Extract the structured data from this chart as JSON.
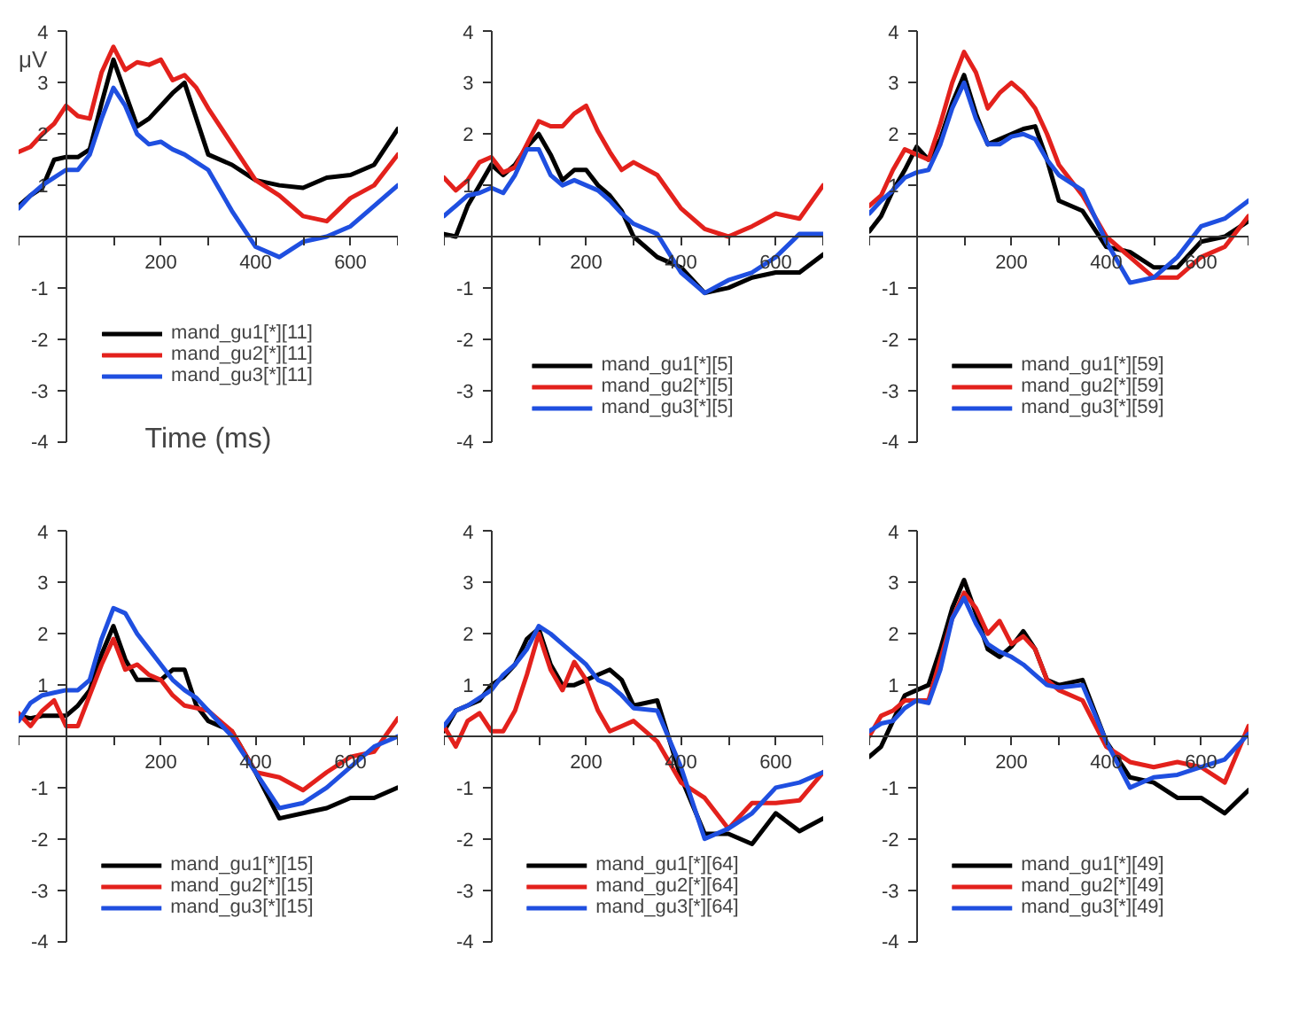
{
  "chart_data": [
    {
      "type": "line",
      "xlabel": "Time (ms)",
      "ylabel": "μV",
      "legend": "bottom",
      "xlim": [
        -100,
        700
      ],
      "ylim": [
        -4,
        4
      ],
      "xticks": [
        {
          "value": -100,
          "label": null
        },
        {
          "value": 0,
          "label": null
        },
        {
          "value": 100,
          "label": null
        },
        200,
        {
          "value": 300,
          "label": null
        },
        400,
        {
          "value": 500,
          "label": null
        },
        600,
        {
          "value": 700,
          "label": null
        }
      ],
      "yticks": [
        -4,
        -3,
        -2,
        -1,
        1,
        2,
        3,
        4
      ],
      "x": [
        -100,
        -75,
        -50,
        -25,
        0,
        25,
        50,
        75,
        100,
        125,
        150,
        175,
        200,
        225,
        250,
        275,
        300,
        350,
        400,
        450,
        500,
        550,
        600,
        650,
        700
      ],
      "series": [
        {
          "name": "mand_gu1[*][11]",
          "color": "#000000",
          "values": [
            0.6,
            0.8,
            0.95,
            1.5,
            1.55,
            1.55,
            1.7,
            2.6,
            3.45,
            2.8,
            2.15,
            2.3,
            2.55,
            2.8,
            3.0,
            2.3,
            1.6,
            1.4,
            1.1,
            1.0,
            0.95,
            1.15,
            1.2,
            1.4,
            2.1
          ]
        },
        {
          "name": "mand_gu2[*][11]",
          "color": "#e3211c",
          "values": [
            1.65,
            1.75,
            2.0,
            2.2,
            2.55,
            2.35,
            2.3,
            3.2,
            3.7,
            3.25,
            3.4,
            3.35,
            3.45,
            3.05,
            3.15,
            2.9,
            2.5,
            1.8,
            1.1,
            0.8,
            0.4,
            0.3,
            0.75,
            1.0,
            1.6
          ]
        },
        {
          "name": "mand_gu3[*][11]",
          "color": "#1f4fe0",
          "values": [
            0.55,
            0.8,
            1.0,
            1.15,
            1.3,
            1.3,
            1.6,
            2.3,
            2.9,
            2.55,
            2.0,
            1.8,
            1.85,
            1.7,
            1.6,
            1.45,
            1.3,
            0.5,
            -0.2,
            -0.4,
            -0.1,
            0.0,
            0.2,
            0.6,
            1.0
          ]
        }
      ]
    },
    {
      "type": "line",
      "legend": "bottom",
      "xlim": [
        -100,
        700
      ],
      "ylim": [
        -4,
        4
      ],
      "xticks": [
        {
          "value": -100,
          "label": null
        },
        {
          "value": 0,
          "label": null
        },
        {
          "value": 100,
          "label": null
        },
        200,
        {
          "value": 300,
          "label": null
        },
        400,
        {
          "value": 500,
          "label": null
        },
        600,
        {
          "value": 700,
          "label": null
        }
      ],
      "yticks": [
        -4,
        -3,
        -2,
        -1,
        1,
        2,
        3,
        4
      ],
      "x": [
        -100,
        -75,
        -50,
        -25,
        0,
        25,
        50,
        75,
        100,
        125,
        150,
        175,
        200,
        225,
        250,
        275,
        300,
        350,
        400,
        450,
        500,
        550,
        600,
        650,
        700
      ],
      "series": [
        {
          "name": "mand_gu1[*][5]",
          "color": "#000000",
          "values": [
            0.05,
            0.0,
            0.6,
            1.0,
            1.4,
            1.2,
            1.4,
            1.75,
            2.0,
            1.6,
            1.1,
            1.3,
            1.3,
            1.0,
            0.8,
            0.5,
            0.0,
            -0.4,
            -0.6,
            -1.1,
            -1.0,
            -0.8,
            -0.7,
            -0.7,
            -0.35
          ]
        },
        {
          "name": "mand_gu2[*][5]",
          "color": "#e3211c",
          "values": [
            1.15,
            0.9,
            1.1,
            1.45,
            1.55,
            1.25,
            1.35,
            1.8,
            2.25,
            2.15,
            2.15,
            2.4,
            2.55,
            2.05,
            1.65,
            1.3,
            1.45,
            1.2,
            0.55,
            0.15,
            0.0,
            0.2,
            0.45,
            0.35,
            1.0
          ]
        },
        {
          "name": "mand_gu3[*][5]",
          "color": "#1f4fe0",
          "values": [
            0.4,
            0.6,
            0.8,
            0.85,
            0.95,
            0.85,
            1.2,
            1.7,
            1.7,
            1.2,
            1.0,
            1.1,
            1.0,
            0.9,
            0.7,
            0.45,
            0.25,
            0.05,
            -0.7,
            -1.1,
            -0.85,
            -0.7,
            -0.4,
            0.05,
            0.05
          ]
        }
      ]
    },
    {
      "type": "line",
      "legend": "bottom",
      "xlim": [
        -100,
        700
      ],
      "ylim": [
        -4,
        4
      ],
      "xticks": [
        {
          "value": -100,
          "label": null
        },
        {
          "value": 0,
          "label": null
        },
        {
          "value": 100,
          "label": null
        },
        200,
        {
          "value": 300,
          "label": null
        },
        400,
        {
          "value": 500,
          "label": null
        },
        600,
        {
          "value": 700,
          "label": null
        }
      ],
      "yticks": [
        -4,
        -3,
        -2,
        -1,
        1,
        2,
        3,
        4
      ],
      "x": [
        -100,
        -75,
        -50,
        -25,
        0,
        25,
        50,
        75,
        100,
        125,
        150,
        175,
        200,
        225,
        250,
        275,
        300,
        350,
        400,
        450,
        500,
        550,
        600,
        650,
        700
      ],
      "series": [
        {
          "name": "mand_gu1[*][59]",
          "color": "#000000",
          "values": [
            0.1,
            0.4,
            0.9,
            1.3,
            1.75,
            1.5,
            1.9,
            2.6,
            3.15,
            2.4,
            1.8,
            1.9,
            2.0,
            2.1,
            2.15,
            1.5,
            0.7,
            0.5,
            -0.2,
            -0.3,
            -0.6,
            -0.6,
            -0.1,
            0.0,
            0.3
          ]
        },
        {
          "name": "mand_gu2[*][59]",
          "color": "#e3211c",
          "values": [
            0.6,
            0.8,
            1.3,
            1.7,
            1.6,
            1.5,
            2.2,
            3.0,
            3.6,
            3.2,
            2.5,
            2.8,
            3.0,
            2.8,
            2.5,
            2.0,
            1.4,
            0.8,
            0.0,
            -0.4,
            -0.8,
            -0.8,
            -0.4,
            -0.2,
            0.4
          ]
        },
        {
          "name": "mand_gu3[*][59]",
          "color": "#1f4fe0",
          "values": [
            0.45,
            0.7,
            0.9,
            1.15,
            1.25,
            1.3,
            1.8,
            2.5,
            3.0,
            2.3,
            1.8,
            1.8,
            1.95,
            2.0,
            1.9,
            1.5,
            1.2,
            0.9,
            -0.1,
            -0.9,
            -0.8,
            -0.4,
            0.2,
            0.35,
            0.7
          ]
        }
      ]
    },
    {
      "type": "line",
      "legend": "bottom",
      "xlim": [
        -100,
        700
      ],
      "ylim": [
        -4,
        4
      ],
      "xticks": [
        {
          "value": -100,
          "label": null
        },
        {
          "value": 0,
          "label": null
        },
        {
          "value": 100,
          "label": null
        },
        200,
        {
          "value": 300,
          "label": null
        },
        400,
        {
          "value": 500,
          "label": null
        },
        600,
        {
          "value": 700,
          "label": null
        }
      ],
      "yticks": [
        -4,
        -3,
        -2,
        -1,
        1,
        2,
        3,
        4
      ],
      "x": [
        -100,
        -75,
        -50,
        -25,
        0,
        25,
        50,
        75,
        100,
        125,
        150,
        175,
        200,
        225,
        250,
        275,
        300,
        350,
        400,
        450,
        500,
        550,
        600,
        650,
        700
      ],
      "series": [
        {
          "name": "mand_gu1[*][15]",
          "color": "#000000",
          "values": [
            0.4,
            0.35,
            0.4,
            0.4,
            0.4,
            0.6,
            0.9,
            1.6,
            2.15,
            1.5,
            1.1,
            1.1,
            1.1,
            1.3,
            1.3,
            0.6,
            0.3,
            0.1,
            -0.7,
            -1.6,
            -1.5,
            -1.4,
            -1.2,
            -1.2,
            -1.0
          ]
        },
        {
          "name": "mand_gu2[*][15]",
          "color": "#e3211c",
          "values": [
            0.45,
            0.2,
            0.5,
            0.7,
            0.2,
            0.2,
            0.8,
            1.4,
            1.9,
            1.3,
            1.4,
            1.2,
            1.1,
            0.8,
            0.6,
            0.55,
            0.5,
            0.1,
            -0.7,
            -0.8,
            -1.05,
            -0.7,
            -0.4,
            -0.3,
            0.35
          ]
        },
        {
          "name": "mand_gu3[*][15]",
          "color": "#1f4fe0",
          "values": [
            0.3,
            0.65,
            0.8,
            0.85,
            0.9,
            0.9,
            1.1,
            1.9,
            2.5,
            2.4,
            2.0,
            1.7,
            1.4,
            1.1,
            0.9,
            0.75,
            0.5,
            0.0,
            -0.7,
            -1.4,
            -1.3,
            -1.0,
            -0.6,
            -0.2,
            0.0
          ]
        }
      ]
    },
    {
      "type": "line",
      "legend": "bottom",
      "xlim": [
        -100,
        700
      ],
      "ylim": [
        -4,
        4
      ],
      "xticks": [
        {
          "value": -100,
          "label": null
        },
        {
          "value": 0,
          "label": null
        },
        {
          "value": 100,
          "label": null
        },
        200,
        {
          "value": 300,
          "label": null
        },
        400,
        {
          "value": 500,
          "label": null
        },
        600,
        {
          "value": 700,
          "label": null
        }
      ],
      "yticks": [
        -4,
        -3,
        -2,
        -1,
        1,
        2,
        3,
        4
      ],
      "x": [
        -100,
        -75,
        -50,
        -25,
        0,
        25,
        50,
        75,
        100,
        125,
        150,
        175,
        200,
        225,
        250,
        275,
        300,
        350,
        400,
        450,
        500,
        550,
        600,
        650,
        700
      ],
      "series": [
        {
          "name": "mand_gu1[*][64]",
          "color": "#000000",
          "values": [
            0.1,
            0.5,
            0.6,
            0.7,
            1.0,
            1.15,
            1.4,
            1.9,
            2.1,
            1.4,
            1.0,
            1.0,
            1.1,
            1.2,
            1.3,
            1.1,
            0.6,
            0.7,
            -0.8,
            -1.9,
            -1.9,
            -2.1,
            -1.5,
            -1.85,
            -1.6
          ]
        },
        {
          "name": "mand_gu2[*][64]",
          "color": "#e3211c",
          "values": [
            0.2,
            -0.2,
            0.3,
            0.45,
            0.1,
            0.1,
            0.5,
            1.2,
            2.0,
            1.3,
            0.9,
            1.45,
            1.1,
            0.5,
            0.1,
            0.2,
            0.3,
            -0.1,
            -0.9,
            -1.2,
            -1.8,
            -1.3,
            -1.3,
            -1.25,
            -0.7
          ]
        },
        {
          "name": "mand_gu3[*][64]",
          "color": "#1f4fe0",
          "values": [
            0.2,
            0.5,
            0.6,
            0.75,
            0.9,
            1.2,
            1.4,
            1.7,
            2.15,
            2.0,
            1.8,
            1.6,
            1.4,
            1.1,
            1.0,
            0.8,
            0.55,
            0.5,
            -0.6,
            -2.0,
            -1.8,
            -1.5,
            -1.0,
            -0.9,
            -0.7
          ]
        }
      ]
    },
    {
      "type": "line",
      "legend": "bottom",
      "xlim": [
        -100,
        700
      ],
      "ylim": [
        -4,
        4
      ],
      "xticks": [
        {
          "value": -100,
          "label": null
        },
        {
          "value": 0,
          "label": null
        },
        {
          "value": 100,
          "label": null
        },
        200,
        {
          "value": 300,
          "label": null
        },
        400,
        {
          "value": 500,
          "label": null
        },
        600,
        {
          "value": 700,
          "label": null
        }
      ],
      "yticks": [
        -4,
        -3,
        -2,
        -1,
        1,
        2,
        3,
        4
      ],
      "x": [
        -100,
        -75,
        -50,
        -25,
        0,
        25,
        50,
        75,
        100,
        125,
        150,
        175,
        200,
        225,
        250,
        275,
        300,
        350,
        400,
        450,
        500,
        550,
        600,
        650,
        700
      ],
      "series": [
        {
          "name": "mand_gu1[*][49]",
          "color": "#000000",
          "values": [
            -0.4,
            -0.2,
            0.3,
            0.8,
            0.9,
            1.0,
            1.7,
            2.5,
            3.05,
            2.4,
            1.7,
            1.55,
            1.75,
            2.05,
            1.7,
            1.1,
            1.0,
            1.1,
            -0.1,
            -0.8,
            -0.9,
            -1.2,
            -1.2,
            -1.5,
            -1.05
          ]
        },
        {
          "name": "mand_gu2[*][49]",
          "color": "#e3211c",
          "values": [
            0.0,
            0.4,
            0.5,
            0.7,
            0.7,
            0.7,
            1.5,
            2.3,
            2.8,
            2.5,
            2.0,
            2.25,
            1.8,
            1.95,
            1.7,
            1.1,
            0.9,
            0.7,
            -0.2,
            -0.5,
            -0.6,
            -0.5,
            -0.6,
            -0.9,
            0.2
          ]
        },
        {
          "name": "mand_gu3[*][49]",
          "color": "#1f4fe0",
          "values": [
            0.1,
            0.25,
            0.3,
            0.55,
            0.7,
            0.65,
            1.3,
            2.3,
            2.7,
            2.2,
            1.8,
            1.65,
            1.55,
            1.4,
            1.2,
            1.0,
            0.95,
            1.0,
            -0.1,
            -1.0,
            -0.8,
            -0.75,
            -0.6,
            -0.45,
            0.05
          ]
        }
      ]
    }
  ]
}
